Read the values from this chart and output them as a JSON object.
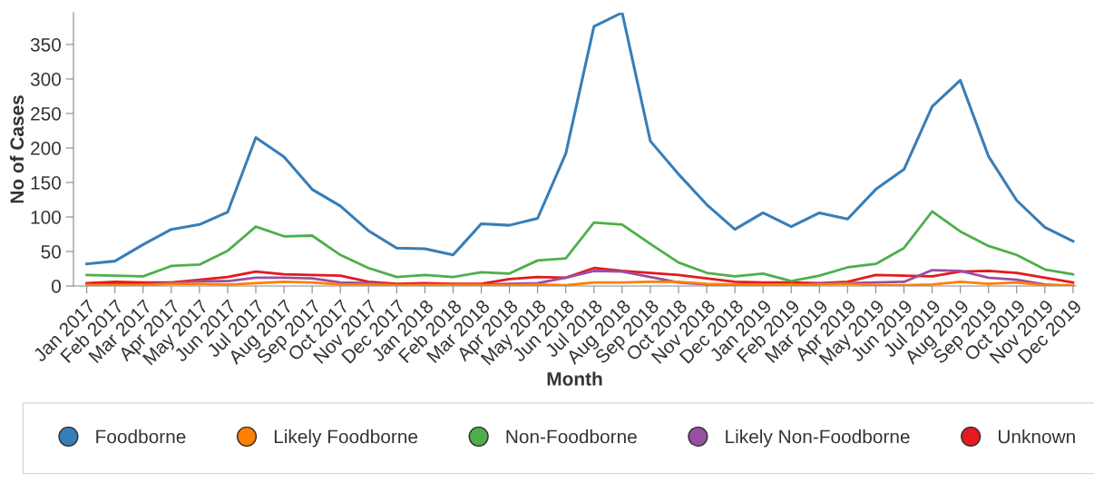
{
  "chart_data": {
    "type": "line",
    "xlabel": "Month",
    "ylabel": "No of Cases",
    "categories": [
      "Jan 2017",
      "Feb 2017",
      "Mar 2017",
      "Apr 2017",
      "May 2017",
      "Jun 2017",
      "Jul 2017",
      "Aug 2017",
      "Sep 2017",
      "Oct 2017",
      "Nov 2017",
      "Dec 2017",
      "Jan 2018",
      "Feb 2018",
      "Mar 2018",
      "Apr 2018",
      "May 2018",
      "Jun 2018",
      "Jul 2018",
      "Aug 2018",
      "Sep 2018",
      "Oct 2018",
      "Nov 2018",
      "Dec 2018",
      "Jan 2019",
      "Feb 2019",
      "Mar 2019",
      "Apr 2019",
      "May 2019",
      "Jun 2019",
      "Jul 2019",
      "Aug 2019",
      "Sep 2019",
      "Oct 2019",
      "Nov 2019",
      "Dec 2019"
    ],
    "series": [
      {
        "name": "Foodborne",
        "color": "#377eb8",
        "values": [
          32,
          36,
          60,
          82,
          89,
          107,
          215,
          187,
          140,
          116,
          80,
          55,
          54,
          45,
          90,
          88,
          98,
          192,
          376,
          396,
          210,
          162,
          118,
          82,
          106,
          86,
          106,
          97,
          140,
          169,
          260,
          298,
          188,
          124,
          85,
          65
        ]
      },
      {
        "name": "Likely Foodborne",
        "color": "#ff7f00",
        "values": [
          1,
          1,
          1,
          3,
          3,
          2,
          4,
          6,
          5,
          2,
          2,
          1,
          1,
          1,
          1,
          1,
          2,
          1,
          5,
          5,
          6,
          6,
          3,
          2,
          2,
          1,
          2,
          3,
          1,
          1,
          2,
          6,
          3,
          5,
          1,
          1
        ]
      },
      {
        "name": "Non-Foodborne",
        "color": "#4daf4a",
        "values": [
          16,
          15,
          14,
          29,
          31,
          51,
          86,
          72,
          73,
          45,
          26,
          13,
          16,
          13,
          20,
          18,
          37,
          40,
          92,
          89,
          61,
          34,
          19,
          14,
          18,
          7,
          15,
          27,
          32,
          55,
          108,
          79,
          58,
          45,
          24,
          17
        ]
      },
      {
        "name": "Likely Non-Foodborne",
        "color": "#984ea3",
        "values": [
          2,
          2,
          2,
          4,
          7,
          7,
          12,
          12,
          11,
          5,
          4,
          1,
          2,
          2,
          2,
          3,
          4,
          12,
          22,
          21,
          13,
          5,
          2,
          2,
          2,
          1,
          3,
          4,
          5,
          6,
          23,
          22,
          12,
          9,
          2,
          0
        ]
      },
      {
        "name": "Unknown",
        "color": "#e41a1c",
        "values": [
          4,
          6,
          5,
          5,
          9,
          13,
          21,
          17,
          16,
          15,
          6,
          3,
          4,
          3,
          3,
          10,
          13,
          12,
          26,
          22,
          19,
          16,
          11,
          6,
          5,
          5,
          4,
          6,
          16,
          15,
          14,
          21,
          22,
          19,
          12,
          5
        ]
      }
    ],
    "ylim": [
      0,
      396
    ],
    "yticks": [
      0,
      50,
      100,
      150,
      200,
      250,
      300,
      350
    ],
    "grid": false,
    "legend": "bottom",
    "marker": "none",
    "line_style": "solid"
  }
}
